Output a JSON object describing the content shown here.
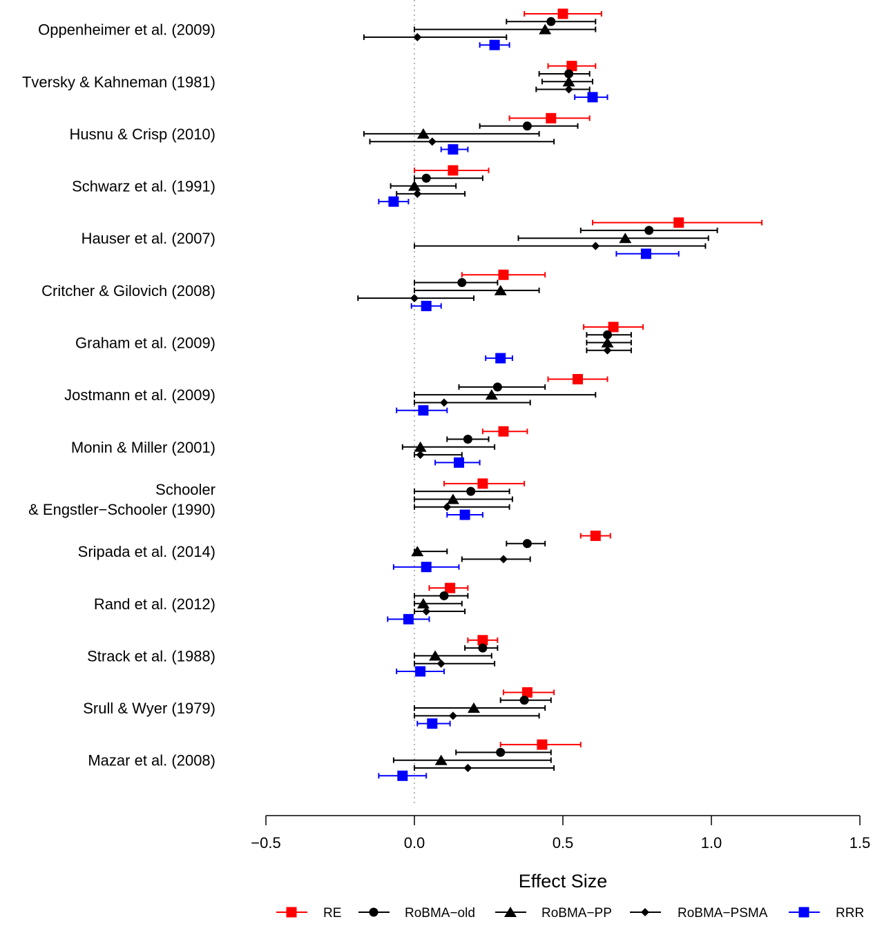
{
  "chart_data": {
    "type": "forest",
    "xlabel": "Effect Size",
    "xlim": [
      -0.5,
      1.5
    ],
    "xticks": [
      -0.5,
      0,
      0.5,
      1,
      1.5
    ],
    "xtick_labels": [
      "−0.5",
      "0.0",
      "0.5",
      "1.0",
      "1.5"
    ],
    "reference_line": 0,
    "legend_position": "bottom",
    "series": [
      {
        "name": "RE",
        "color": "#FF0000",
        "marker": "square"
      },
      {
        "name": "RoBMA−old",
        "color": "#000000",
        "marker": "circle"
      },
      {
        "name": "RoBMA−PP",
        "color": "#000000",
        "marker": "triangle"
      },
      {
        "name": "RoBMA−PSMA",
        "color": "#000000",
        "marker": "diamond"
      },
      {
        "name": "RRR",
        "color": "#0000FF",
        "marker": "square"
      }
    ],
    "studies": [
      {
        "label": [
          "Oppenheimer et al. (2009)"
        ],
        "estimates": [
          {
            "series": 0,
            "est": 0.5,
            "lo": 0.37,
            "hi": 0.63
          },
          {
            "series": 1,
            "est": 0.46,
            "lo": 0.31,
            "hi": 0.61
          },
          {
            "series": 2,
            "est": 0.44,
            "lo": 0.0,
            "hi": 0.61
          },
          {
            "series": 3,
            "est": 0.01,
            "lo": -0.17,
            "hi": 0.31
          },
          {
            "series": 4,
            "est": 0.27,
            "lo": 0.22,
            "hi": 0.32
          }
        ]
      },
      {
        "label": [
          "Tversky & Kahneman (1981)"
        ],
        "estimates": [
          {
            "series": 0,
            "est": 0.53,
            "lo": 0.45,
            "hi": 0.61
          },
          {
            "series": 1,
            "est": 0.52,
            "lo": 0.42,
            "hi": 0.59
          },
          {
            "series": 2,
            "est": 0.52,
            "lo": 0.43,
            "hi": 0.6
          },
          {
            "series": 3,
            "est": 0.52,
            "lo": 0.41,
            "hi": 0.59
          },
          {
            "series": 4,
            "est": 0.6,
            "lo": 0.54,
            "hi": 0.65
          }
        ]
      },
      {
        "label": [
          "Husnu & Crisp (2010)"
        ],
        "estimates": [
          {
            "series": 0,
            "est": 0.46,
            "lo": 0.32,
            "hi": 0.59
          },
          {
            "series": 1,
            "est": 0.38,
            "lo": 0.22,
            "hi": 0.55
          },
          {
            "series": 2,
            "est": 0.03,
            "lo": -0.17,
            "hi": 0.42
          },
          {
            "series": 3,
            "est": 0.06,
            "lo": -0.15,
            "hi": 0.47
          },
          {
            "series": 4,
            "est": 0.13,
            "lo": 0.09,
            "hi": 0.18
          }
        ]
      },
      {
        "label": [
          "Schwarz et al. (1991)"
        ],
        "estimates": [
          {
            "series": 0,
            "est": 0.13,
            "lo": 0.0,
            "hi": 0.25
          },
          {
            "series": 1,
            "est": 0.04,
            "lo": 0.0,
            "hi": 0.23
          },
          {
            "series": 2,
            "est": 0.0,
            "lo": -0.08,
            "hi": 0.14
          },
          {
            "series": 3,
            "est": 0.01,
            "lo": -0.06,
            "hi": 0.17
          },
          {
            "series": 4,
            "est": -0.07,
            "lo": -0.12,
            "hi": -0.02
          }
        ]
      },
      {
        "label": [
          "Hauser et al. (2007)"
        ],
        "estimates": [
          {
            "series": 0,
            "est": 0.89,
            "lo": 0.6,
            "hi": 1.17
          },
          {
            "series": 1,
            "est": 0.79,
            "lo": 0.56,
            "hi": 1.02
          },
          {
            "series": 2,
            "est": 0.71,
            "lo": 0.35,
            "hi": 0.99
          },
          {
            "series": 3,
            "est": 0.61,
            "lo": 0.0,
            "hi": 0.98
          },
          {
            "series": 4,
            "est": 0.78,
            "lo": 0.68,
            "hi": 0.89
          }
        ]
      },
      {
        "label": [
          "Critcher & Gilovich (2008)"
        ],
        "estimates": [
          {
            "series": 0,
            "est": 0.3,
            "lo": 0.16,
            "hi": 0.44
          },
          {
            "series": 1,
            "est": 0.16,
            "lo": 0.0,
            "hi": 0.28
          },
          {
            "series": 2,
            "est": 0.29,
            "lo": 0.0,
            "hi": 0.42
          },
          {
            "series": 3,
            "est": 0.0,
            "lo": -0.19,
            "hi": 0.2
          },
          {
            "series": 4,
            "est": 0.04,
            "lo": -0.01,
            "hi": 0.09
          }
        ]
      },
      {
        "label": [
          "Graham et al. (2009)"
        ],
        "estimates": [
          {
            "series": 0,
            "est": 0.67,
            "lo": 0.57,
            "hi": 0.77
          },
          {
            "series": 1,
            "est": 0.65,
            "lo": 0.58,
            "hi": 0.73
          },
          {
            "series": 2,
            "est": 0.65,
            "lo": 0.58,
            "hi": 0.73
          },
          {
            "series": 3,
            "est": 0.65,
            "lo": 0.58,
            "hi": 0.73
          },
          {
            "series": 4,
            "est": 0.29,
            "lo": 0.24,
            "hi": 0.33
          }
        ]
      },
      {
        "label": [
          "Jostmann et al. (2009)"
        ],
        "estimates": [
          {
            "series": 0,
            "est": 0.55,
            "lo": 0.45,
            "hi": 0.65
          },
          {
            "series": 1,
            "est": 0.28,
            "lo": 0.15,
            "hi": 0.44
          },
          {
            "series": 2,
            "est": 0.26,
            "lo": 0.0,
            "hi": 0.61
          },
          {
            "series": 3,
            "est": 0.1,
            "lo": 0.0,
            "hi": 0.39
          },
          {
            "series": 4,
            "est": 0.03,
            "lo": -0.06,
            "hi": 0.11
          }
        ]
      },
      {
        "label": [
          "Monin & Miller (2001)"
        ],
        "estimates": [
          {
            "series": 0,
            "est": 0.3,
            "lo": 0.23,
            "hi": 0.38
          },
          {
            "series": 1,
            "est": 0.18,
            "lo": 0.11,
            "hi": 0.25
          },
          {
            "series": 2,
            "est": 0.02,
            "lo": -0.04,
            "hi": 0.27
          },
          {
            "series": 3,
            "est": 0.02,
            "lo": 0.0,
            "hi": 0.16
          },
          {
            "series": 4,
            "est": 0.15,
            "lo": 0.07,
            "hi": 0.22
          }
        ]
      },
      {
        "label": [
          "Schooler",
          "& Engstler−Schooler (1990)"
        ],
        "estimates": [
          {
            "series": 0,
            "est": 0.23,
            "lo": 0.1,
            "hi": 0.37
          },
          {
            "series": 1,
            "est": 0.19,
            "lo": 0.0,
            "hi": 0.32
          },
          {
            "series": 2,
            "est": 0.13,
            "lo": 0.0,
            "hi": 0.33
          },
          {
            "series": 3,
            "est": 0.11,
            "lo": 0.0,
            "hi": 0.32
          },
          {
            "series": 4,
            "est": 0.17,
            "lo": 0.11,
            "hi": 0.23
          }
        ]
      },
      {
        "label": [
          "Sripada et al. (2014)"
        ],
        "estimates": [
          {
            "series": 0,
            "est": 0.61,
            "lo": 0.56,
            "hi": 0.66
          },
          {
            "series": 1,
            "est": 0.38,
            "lo": 0.31,
            "hi": 0.44
          },
          {
            "series": 2,
            "est": 0.01,
            "lo": 0.0,
            "hi": 0.11
          },
          {
            "series": 3,
            "est": 0.3,
            "lo": 0.16,
            "hi": 0.39
          },
          {
            "series": 4,
            "est": 0.04,
            "lo": -0.07,
            "hi": 0.15
          }
        ]
      },
      {
        "label": [
          "Rand et al. (2012)"
        ],
        "estimates": [
          {
            "series": 0,
            "est": 0.12,
            "lo": 0.05,
            "hi": 0.18
          },
          {
            "series": 1,
            "est": 0.1,
            "lo": 0.0,
            "hi": 0.18
          },
          {
            "series": 2,
            "est": 0.03,
            "lo": 0.0,
            "hi": 0.16
          },
          {
            "series": 3,
            "est": 0.04,
            "lo": 0.0,
            "hi": 0.17
          },
          {
            "series": 4,
            "est": -0.02,
            "lo": -0.09,
            "hi": 0.05
          }
        ]
      },
      {
        "label": [
          "Strack et al. (1988)"
        ],
        "estimates": [
          {
            "series": 0,
            "est": 0.23,
            "lo": 0.18,
            "hi": 0.28
          },
          {
            "series": 1,
            "est": 0.23,
            "lo": 0.17,
            "hi": 0.28
          },
          {
            "series": 2,
            "est": 0.07,
            "lo": 0.0,
            "hi": 0.26
          },
          {
            "series": 3,
            "est": 0.09,
            "lo": 0.0,
            "hi": 0.27
          },
          {
            "series": 4,
            "est": 0.02,
            "lo": -0.06,
            "hi": 0.1
          }
        ]
      },
      {
        "label": [
          "Srull & Wyer (1979)"
        ],
        "estimates": [
          {
            "series": 0,
            "est": 0.38,
            "lo": 0.3,
            "hi": 0.47
          },
          {
            "series": 1,
            "est": 0.37,
            "lo": 0.29,
            "hi": 0.46
          },
          {
            "series": 2,
            "est": 0.2,
            "lo": 0.0,
            "hi": 0.44
          },
          {
            "series": 3,
            "est": 0.13,
            "lo": 0.0,
            "hi": 0.42
          },
          {
            "series": 4,
            "est": 0.06,
            "lo": 0.01,
            "hi": 0.12
          }
        ]
      },
      {
        "label": [
          "Mazar et al. (2008)"
        ],
        "estimates": [
          {
            "series": 0,
            "est": 0.43,
            "lo": 0.29,
            "hi": 0.56
          },
          {
            "series": 1,
            "est": 0.29,
            "lo": 0.14,
            "hi": 0.46
          },
          {
            "series": 2,
            "est": 0.09,
            "lo": -0.07,
            "hi": 0.46
          },
          {
            "series": 3,
            "est": 0.18,
            "lo": 0.0,
            "hi": 0.47
          },
          {
            "series": 4,
            "est": -0.04,
            "lo": -0.12,
            "hi": 0.04
          }
        ]
      }
    ]
  }
}
